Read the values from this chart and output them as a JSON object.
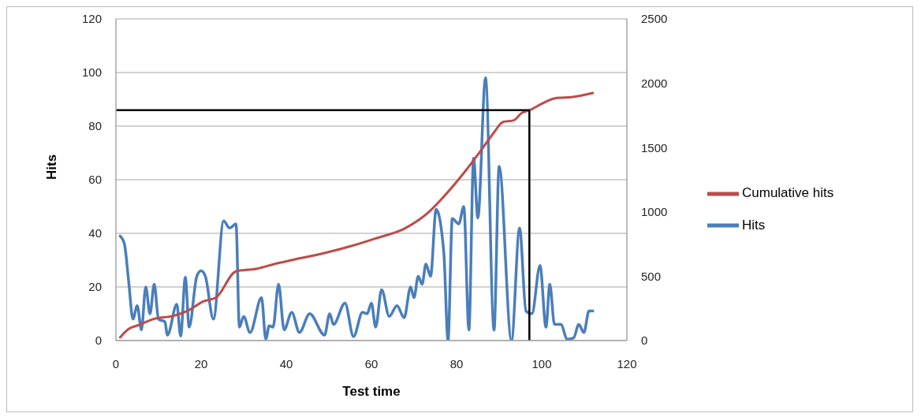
{
  "chart_data": {
    "type": "line",
    "xlabel": "Test time",
    "ylabel": "Hits",
    "xlim": [
      0,
      120
    ],
    "xticks": [
      0,
      20,
      40,
      60,
      80,
      100,
      120
    ],
    "ylim": [
      0,
      120
    ],
    "yticks": [
      0,
      20,
      40,
      60,
      80,
      100,
      120
    ],
    "y2lim": [
      0,
      2500
    ],
    "y2ticks": [
      0,
      500,
      1000,
      1500,
      2000,
      2500
    ],
    "grid": "y",
    "legend": "right",
    "marker": "none",
    "line_style": "solid",
    "ref_lines": [
      {
        "axis": "y2",
        "value": 1790,
        "color": "#000000"
      },
      {
        "axis": "x",
        "value": 97.1,
        "color": "#000000"
      }
    ],
    "series": [
      {
        "name": "Hits",
        "color": "#4a7ebb",
        "x": [
          1,
          2,
          3,
          4,
          5,
          6,
          7,
          8,
          9,
          10,
          11.5,
          12.1,
          14.3,
          15.2,
          16.3,
          17.2,
          19,
          20,
          21,
          22.9,
          25.3,
          26.7,
          28.2,
          29,
          30,
          31.5,
          34.2,
          35.2,
          36,
          36.9,
          38.2,
          39.5,
          41.3,
          43.1,
          45.5,
          49,
          50.2,
          51.1,
          53.8,
          55.8,
          57.9,
          59,
          60,
          61,
          62.4,
          64.2,
          66,
          67.7,
          69.2,
          70,
          71,
          71.9,
          72.8,
          73.9,
          75.2,
          77,
          78,
          79,
          80.5,
          81.7,
          82.9,
          84,
          85,
          86.8,
          88.8,
          90,
          92.9,
          94.8,
          96.3,
          97.7,
          99.6,
          101,
          101.9,
          103,
          104.5,
          106,
          107.5,
          108.7,
          109.9,
          111.1,
          112
        ],
        "values": [
          39,
          36,
          22,
          8,
          13,
          4,
          20,
          10,
          21,
          8,
          7,
          2,
          13.5,
          1.7,
          23.6,
          5,
          24,
          26,
          24,
          8,
          44.6,
          42,
          43.5,
          5,
          9,
          3,
          16,
          0.5,
          5.5,
          5,
          21,
          4,
          10.5,
          3,
          10,
          2,
          10,
          6,
          14,
          1.5,
          10.5,
          10,
          14,
          5,
          19,
          9,
          13,
          8.5,
          20,
          16,
          24,
          21,
          28.5,
          24,
          49,
          33,
          0,
          45.5,
          43.5,
          50,
          3.9,
          68,
          45.7,
          98,
          3.9,
          65,
          0,
          42,
          11,
          10,
          28,
          5,
          21,
          6,
          6,
          0.5,
          1,
          6,
          3,
          11,
          11
        ]
      },
      {
        "name": "Cumulative hits",
        "color": "#be4b48",
        "axis": "y2",
        "x": [
          1,
          3,
          5.3,
          9.2,
          13.4,
          16.9,
          20.5,
          23.5,
          28.2,
          33,
          37.7,
          41.9,
          49,
          55,
          60.9,
          68,
          73.4,
          77,
          81.7,
          85.9,
          88.8,
          90.9,
          93.3,
          95.4,
          97.1,
          100.1,
          103.1,
          107.3,
          112
        ],
        "values": [
          25,
          90,
          120,
          171,
          191,
          232,
          304,
          334,
          538,
          558,
          599,
          630,
          680,
          732,
          793,
          874,
          996,
          1119,
          1302,
          1485,
          1618,
          1699,
          1710,
          1771,
          1790,
          1842,
          1883,
          1893,
          1924
        ]
      }
    ]
  }
}
